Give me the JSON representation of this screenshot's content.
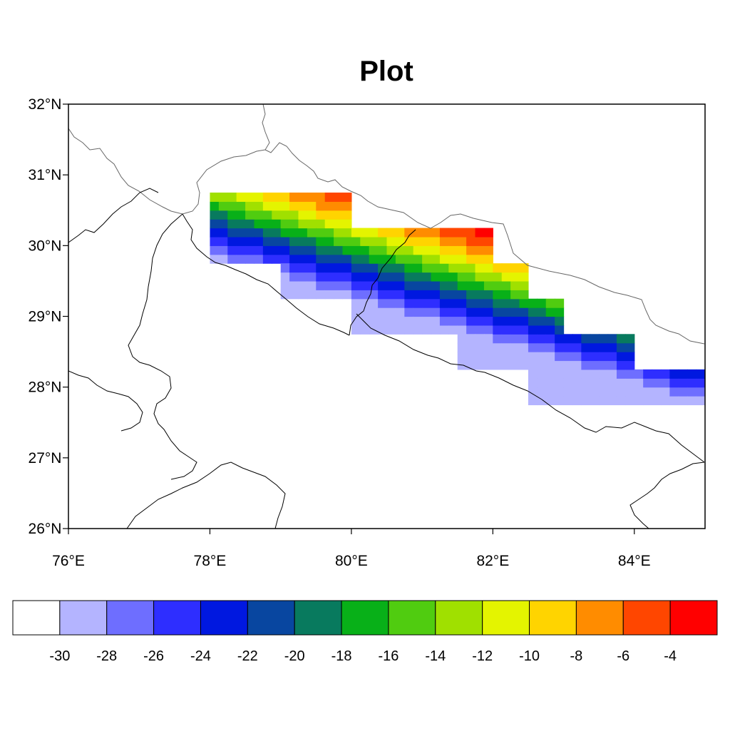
{
  "title": "Plot",
  "chart_data": {
    "type": "heatmap",
    "title": "Plot",
    "x_axis": {
      "range": [
        76,
        85
      ],
      "ticks": [
        76,
        78,
        80,
        82,
        84
      ],
      "tick_labels": [
        "76°E",
        "78°E",
        "80°E",
        "82°E",
        "84°E"
      ]
    },
    "y_axis": {
      "range": [
        26,
        32
      ],
      "ticks": [
        26,
        27,
        28,
        29,
        30,
        31,
        32
      ],
      "tick_labels": [
        "26°N",
        "27°N",
        "28°N",
        "29°N",
        "30°N",
        "31°N",
        "32°N"
      ]
    },
    "colorbar": {
      "placement": "bottom",
      "levels": [
        -30,
        -28,
        -26,
        -24,
        -22,
        -20,
        -18,
        -16,
        -14,
        -12,
        -10,
        -8,
        -6,
        -4
      ],
      "labels": [
        "-30",
        "-28",
        "-26",
        "-24",
        "-22",
        "-20",
        "-18",
        "-16",
        "-14",
        "-12",
        "-10",
        "-8",
        "-6",
        "-4"
      ],
      "colors": [
        "#ffffff",
        "#b4b4ff",
        "#6e6eff",
        "#2e2eff",
        "#0018e0",
        "#0846a0",
        "#087a5e",
        "#08b018",
        "#50cc10",
        "#a0e000",
        "#e4f400",
        "#ffd400",
        "#ff8c00",
        "#ff4600",
        "#ff0000"
      ]
    },
    "field_description_note": "",
    "data_region_steps": [
      {
        "lon_min": 78,
        "lon_max": 80,
        "lat_min": 29.75,
        "lat_max": 30.75
      },
      {
        "lon_min": 79,
        "lon_max": 80,
        "lat_min": 29.25,
        "lat_max": 29.75
      },
      {
        "lon_min": 80,
        "lon_max": 82,
        "lat_min": 28.75,
        "lat_max": 30.25
      },
      {
        "lon_min": 81.5,
        "lon_max": 82,
        "lat_min": 28.25,
        "lat_max": 28.75
      },
      {
        "lon_min": 82,
        "lon_max": 82.5,
        "lat_min": 28.25,
        "lat_max": 29.75
      },
      {
        "lon_min": 82.5,
        "lon_max": 83,
        "lat_min": 27.75,
        "lat_max": 29.25
      },
      {
        "lon_min": 83,
        "lon_max": 84,
        "lat_min": 27.75,
        "lat_max": 28.75
      },
      {
        "lon_min": 84,
        "lon_max": 85,
        "lat_min": 27.75,
        "lat_max": 28.25
      }
    ],
    "gradient_stops": [
      {
        "d": 0.0,
        "level": 1
      },
      {
        "d": 0.1,
        "level": 2
      },
      {
        "d": 0.22,
        "level": 3
      },
      {
        "d": 0.35,
        "level": 4
      },
      {
        "d": 0.48,
        "level": 5
      },
      {
        "d": 0.6,
        "level": 6
      },
      {
        "d": 0.7,
        "level": 7
      },
      {
        "d": 0.8,
        "level": 8
      },
      {
        "d": 0.9,
        "level": 9
      },
      {
        "d": 1.0,
        "level": 10
      },
      {
        "d": 1.1,
        "level": 11
      },
      {
        "d": 1.22,
        "level": 12
      },
      {
        "d": 1.36,
        "level": 13
      },
      {
        "d": 1.52,
        "level": 14
      }
    ]
  }
}
